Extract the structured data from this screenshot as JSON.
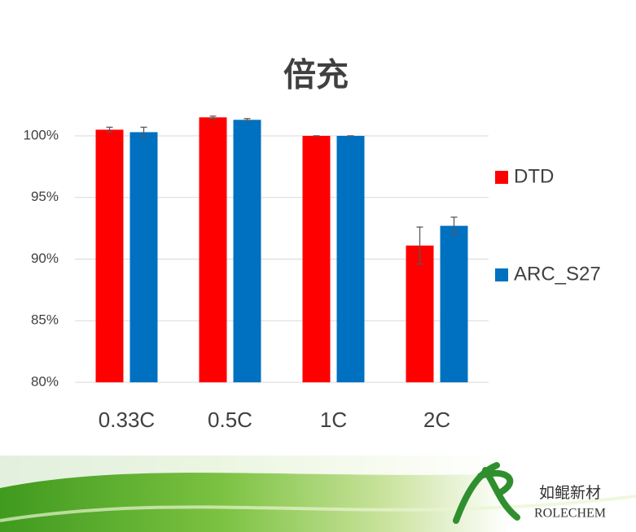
{
  "chart_data": {
    "type": "bar",
    "title": "倍充",
    "categories": [
      "0.33C",
      "0.5C",
      "1C",
      "2C"
    ],
    "series": [
      {
        "name": "DTD",
        "color": "#ff0000",
        "values": [
          100.5,
          101.5,
          100,
          91.1
        ],
        "errors": [
          0.2,
          0.1,
          0,
          1.5
        ]
      },
      {
        "name": "ARC_S27",
        "color": "#0070c0",
        "values": [
          100.3,
          101.3,
          100,
          92.7
        ],
        "errors": [
          0.4,
          0.1,
          0,
          0.7
        ]
      }
    ],
    "ylim": [
      80,
      102
    ],
    "yticks": [
      {
        "value": 80,
        "label": "80%"
      },
      {
        "value": 85,
        "label": "85%"
      },
      {
        "value": 90,
        "label": "90%"
      },
      {
        "value": 95,
        "label": "95%"
      },
      {
        "value": 100,
        "label": "100%"
      }
    ],
    "grid": true,
    "legend": "right"
  },
  "footer": {
    "brand_cn": "如鲲新材",
    "brand_en": "ROLECHEM"
  }
}
